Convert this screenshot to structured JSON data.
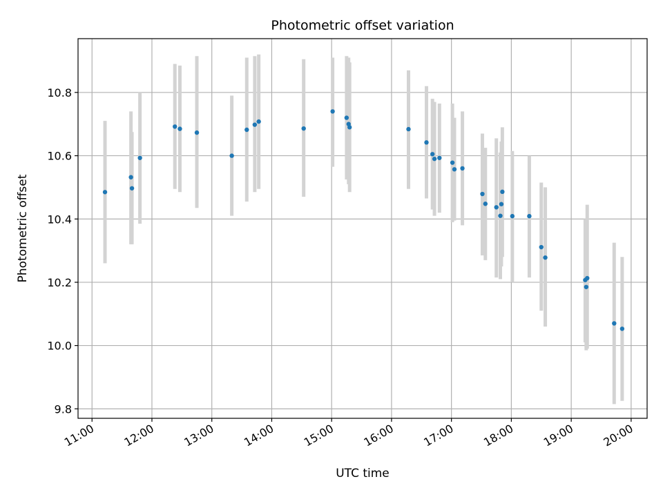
{
  "chart_data": {
    "type": "scatter",
    "title": "Photometric offset variation",
    "xlabel": "UTC time",
    "ylabel": "Photometric offset",
    "xlim": [
      "10:46",
      "20:16"
    ],
    "ylim": [
      9.77,
      10.97
    ],
    "xticks": [
      "11:00",
      "12:00",
      "13:00",
      "14:00",
      "15:00",
      "16:00",
      "17:00",
      "18:00",
      "19:00",
      "20:00"
    ],
    "yticks": [
      9.8,
      10.0,
      10.2,
      10.4,
      10.6,
      10.8
    ],
    "ytick_labels": [
      "9.8",
      "10.0",
      "10.2",
      "10.4",
      "10.6",
      "10.8"
    ],
    "grid": true,
    "colors": {
      "points": "#1f77b4",
      "errorbars": "#d3d3d3",
      "grid": "#b0b0b0"
    },
    "points": [
      {
        "x": "11:13",
        "y": 10.485,
        "lo": 10.26,
        "hi": 10.71
      },
      {
        "x": "11:39",
        "y": 10.532,
        "lo": 10.32,
        "hi": 10.74
      },
      {
        "x": "11:40",
        "y": 10.497,
        "lo": 10.32,
        "hi": 10.675
      },
      {
        "x": "11:48",
        "y": 10.593,
        "lo": 10.385,
        "hi": 10.8
      },
      {
        "x": "12:23",
        "y": 10.692,
        "lo": 10.495,
        "hi": 10.89
      },
      {
        "x": "12:28",
        "y": 10.685,
        "lo": 10.485,
        "hi": 10.885
      },
      {
        "x": "12:45",
        "y": 10.673,
        "lo": 10.435,
        "hi": 10.915
      },
      {
        "x": "13:20",
        "y": 10.6,
        "lo": 10.41,
        "hi": 10.79
      },
      {
        "x": "13:35",
        "y": 10.682,
        "lo": 10.455,
        "hi": 10.91
      },
      {
        "x": "13:43",
        "y": 10.698,
        "lo": 10.485,
        "hi": 10.915
      },
      {
        "x": "13:47",
        "y": 10.708,
        "lo": 10.495,
        "hi": 10.92
      },
      {
        "x": "14:32",
        "y": 10.686,
        "lo": 10.47,
        "hi": 10.905
      },
      {
        "x": "15:01",
        "y": 10.74,
        "lo": 10.565,
        "hi": 10.91
      },
      {
        "x": "15:15",
        "y": 10.72,
        "lo": 10.525,
        "hi": 10.915
      },
      {
        "x": "15:17",
        "y": 10.7,
        "lo": 10.51,
        "hi": 10.91
      },
      {
        "x": "15:18",
        "y": 10.69,
        "lo": 10.485,
        "hi": 10.895
      },
      {
        "x": "16:17",
        "y": 10.684,
        "lo": 10.495,
        "hi": 10.87
      },
      {
        "x": "16:35",
        "y": 10.642,
        "lo": 10.465,
        "hi": 10.82
      },
      {
        "x": "16:41",
        "y": 10.605,
        "lo": 10.43,
        "hi": 10.78
      },
      {
        "x": "16:43",
        "y": 10.59,
        "lo": 10.41,
        "hi": 10.77
      },
      {
        "x": "16:48",
        "y": 10.593,
        "lo": 10.42,
        "hi": 10.765
      },
      {
        "x": "17:01",
        "y": 10.578,
        "lo": 10.39,
        "hi": 10.765
      },
      {
        "x": "17:03",
        "y": 10.557,
        "lo": 10.395,
        "hi": 10.72
      },
      {
        "x": "17:11",
        "y": 10.56,
        "lo": 10.38,
        "hi": 10.74
      },
      {
        "x": "17:31",
        "y": 10.479,
        "lo": 10.285,
        "hi": 10.67
      },
      {
        "x": "17:34",
        "y": 10.448,
        "lo": 10.27,
        "hi": 10.625
      },
      {
        "x": "17:45",
        "y": 10.437,
        "lo": 10.215,
        "hi": 10.655
      },
      {
        "x": "17:49",
        "y": 10.41,
        "lo": 10.21,
        "hi": 10.61
      },
      {
        "x": "17:50",
        "y": 10.447,
        "lo": 10.25,
        "hi": 10.645
      },
      {
        "x": "17:51",
        "y": 10.486,
        "lo": 10.28,
        "hi": 10.69
      },
      {
        "x": "18:01",
        "y": 10.409,
        "lo": 10.2,
        "hi": 10.615
      },
      {
        "x": "18:18",
        "y": 10.409,
        "lo": 10.215,
        "hi": 10.6
      },
      {
        "x": "18:30",
        "y": 10.311,
        "lo": 10.11,
        "hi": 10.515
      },
      {
        "x": "18:34",
        "y": 10.278,
        "lo": 10.06,
        "hi": 10.5
      },
      {
        "x": "19:14",
        "y": 10.207,
        "lo": 10.01,
        "hi": 10.4
      },
      {
        "x": "19:15",
        "y": 10.185,
        "lo": 9.985,
        "hi": 10.385
      },
      {
        "x": "19:16",
        "y": 10.213,
        "lo": 9.99,
        "hi": 10.445
      },
      {
        "x": "19:43",
        "y": 10.07,
        "lo": 9.815,
        "hi": 10.325
      },
      {
        "x": "19:51",
        "y": 10.053,
        "lo": 9.825,
        "hi": 10.28
      }
    ]
  }
}
